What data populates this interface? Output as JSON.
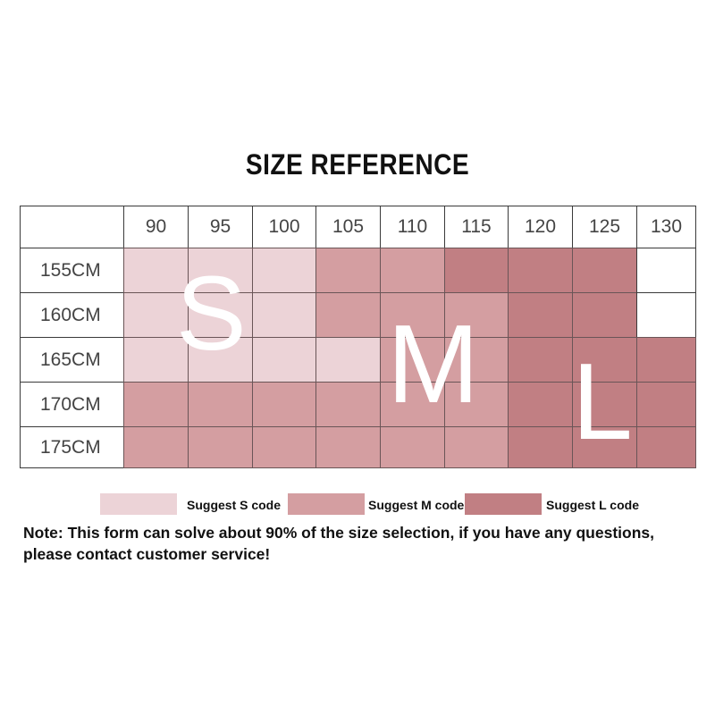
{
  "title": "SIZE REFERENCE",
  "columns": [
    "90",
    "95",
    "100",
    "105",
    "110",
    "115",
    "120",
    "125",
    "130"
  ],
  "rows": [
    "155CM",
    "160CM",
    "165CM",
    "170CM",
    "175CM"
  ],
  "size_grid": [
    [
      "S",
      "S",
      "S",
      "M",
      "M",
      "L",
      "L",
      "L",
      ""
    ],
    [
      "S",
      "S",
      "S",
      "M",
      "M",
      "M",
      "L",
      "L",
      ""
    ],
    [
      "S",
      "S",
      "S",
      "S",
      "M",
      "M",
      "L",
      "L",
      "L"
    ],
    [
      "M",
      "M",
      "M",
      "M",
      "M",
      "M",
      "L",
      "L",
      "L"
    ],
    [
      "M",
      "M",
      "M",
      "M",
      "M",
      "M",
      "L",
      "L",
      "L"
    ]
  ],
  "colors": {
    "S": "#ecd3d7",
    "M": "#d49ea1",
    "L": "#c17f83",
    "empty": "#ffffff"
  },
  "big_letters": {
    "s": "S",
    "m": "M",
    "l": "L"
  },
  "legend": [
    {
      "key": "S",
      "label": "Suggest S code"
    },
    {
      "key": "M",
      "label": "Suggest M code"
    },
    {
      "key": "L",
      "label": "Suggest L code"
    }
  ],
  "note": "Note: This form can solve about 90% of the size selection, if you have any questions, please contact customer service!"
}
